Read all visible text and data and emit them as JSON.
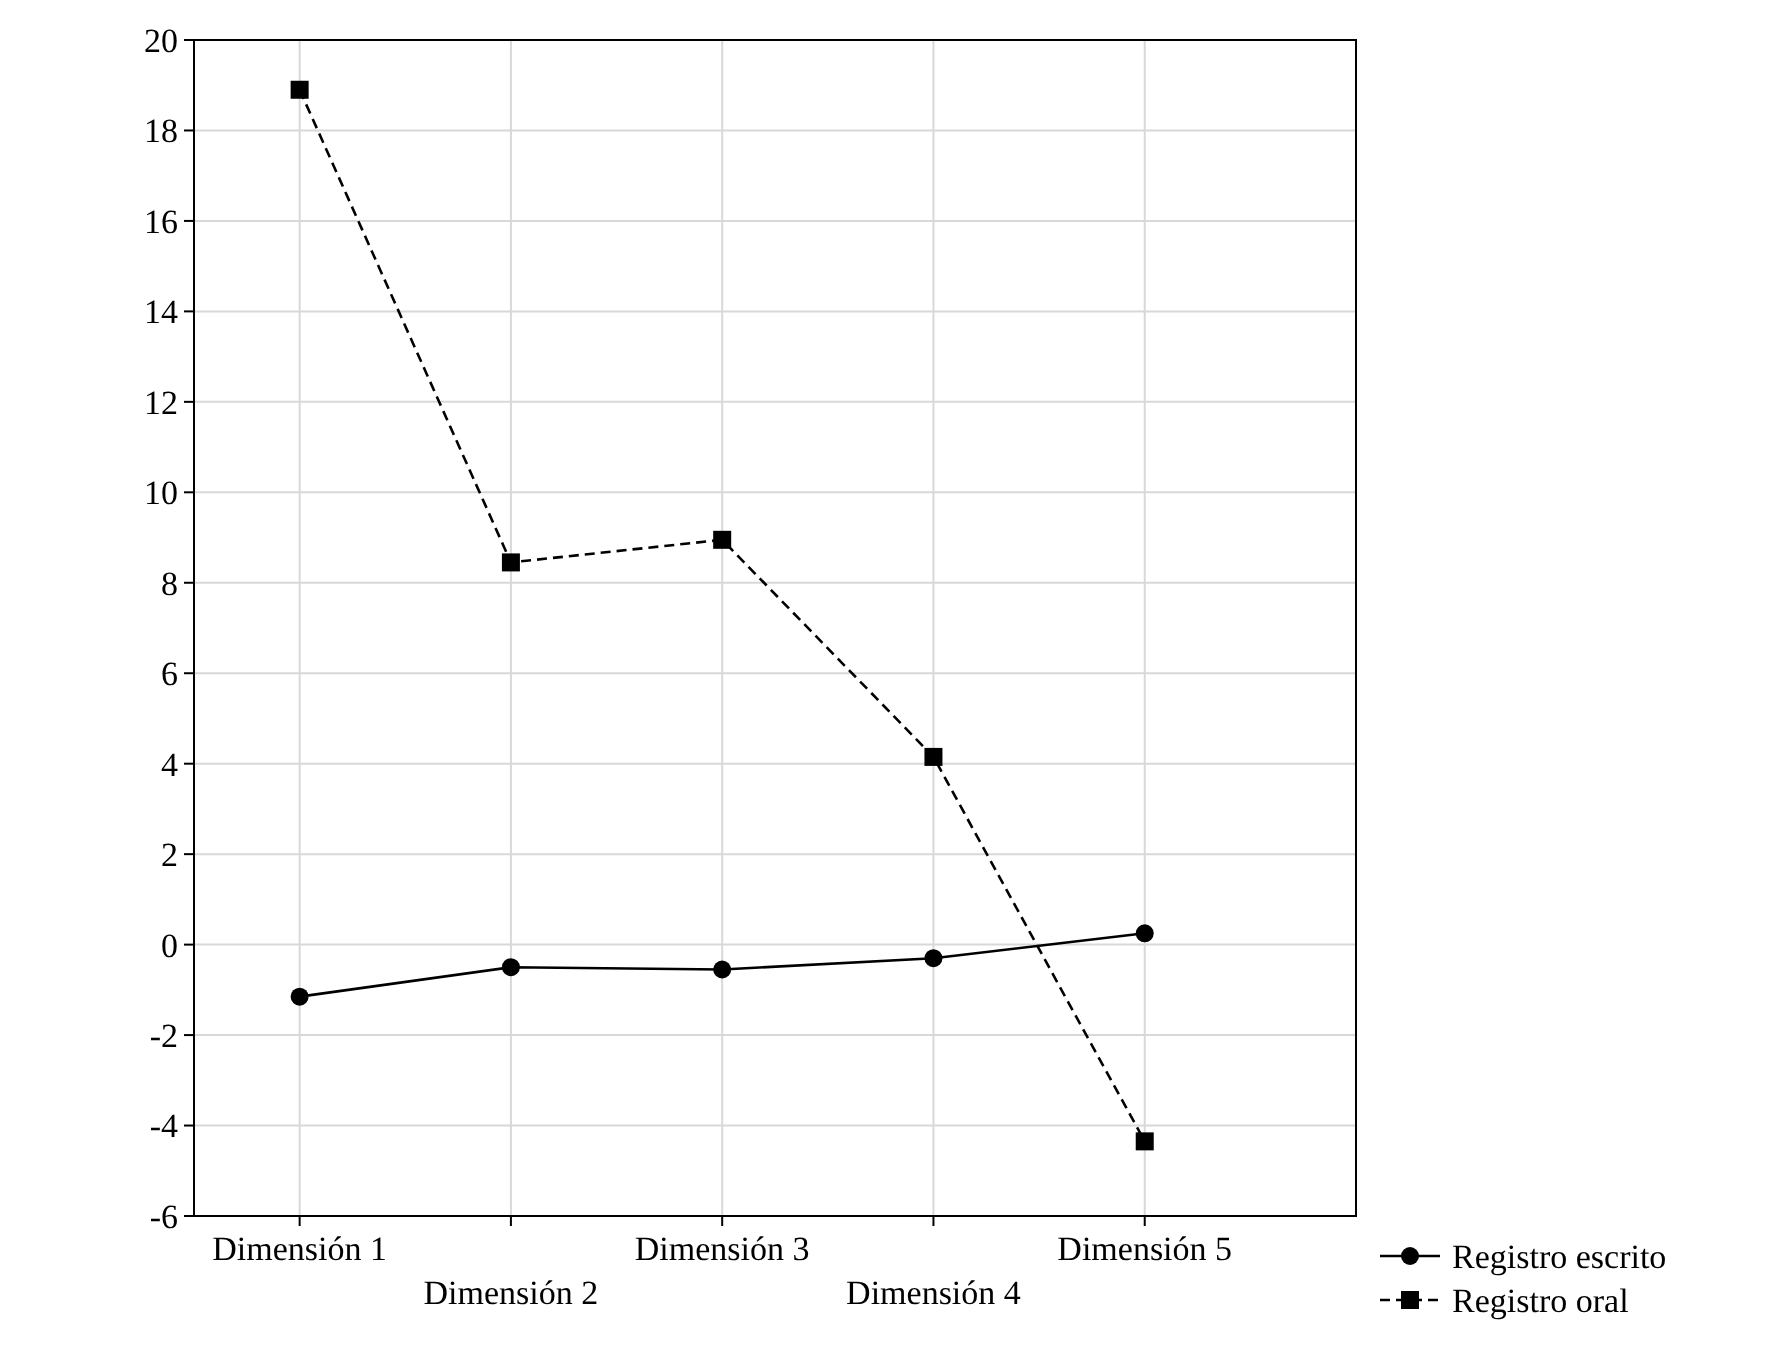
{
  "chart_data": {
    "type": "line",
    "categories": [
      "Dimensión 1",
      "Dimensión 2",
      "Dimensión 3",
      "Dimensión 4",
      "Dimensión 5"
    ],
    "series": [
      {
        "name": "Registro escrito",
        "color": "#000000",
        "values": [
          -1.15,
          -0.5,
          -0.55,
          -0.3,
          0.25
        ],
        "marker": "circle",
        "line_style": "solid"
      },
      {
        "name": "Registro oral",
        "color": "#000000",
        "values": [
          18.9,
          8.45,
          8.95,
          4.15,
          -4.35
        ],
        "marker": "square",
        "line_style": "dashed"
      }
    ],
    "ylim": [
      -6,
      20
    ],
    "yticks": [
      -6,
      -4,
      -2,
      0,
      2,
      4,
      6,
      8,
      10,
      12,
      14,
      16,
      18,
      20
    ],
    "grid": true,
    "legend": "bottom right"
  }
}
